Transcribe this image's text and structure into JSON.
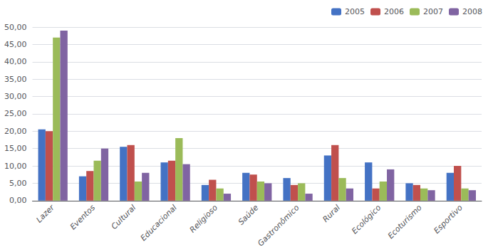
{
  "chart_data": {
    "type": "bar",
    "categories": [
      "Lazer",
      "Eventos",
      "Cultural",
      "Educacional",
      "Religioso",
      "Saúde",
      "Gastronômico",
      "Rural",
      "Ecológico",
      "Ecoturismo",
      "Esportivo"
    ],
    "series": [
      {
        "name": "2005",
        "color": "#4472C4",
        "values": [
          20.5,
          7.0,
          15.5,
          11.0,
          4.5,
          8.0,
          6.5,
          13.0,
          11.0,
          5.0,
          8.0
        ]
      },
      {
        "name": "2006",
        "color": "#C0504D",
        "values": [
          20.0,
          8.5,
          16.0,
          11.5,
          6.0,
          7.5,
          4.5,
          16.0,
          3.5,
          4.5,
          10.0
        ]
      },
      {
        "name": "2007",
        "color": "#9BBB59",
        "values": [
          47.0,
          11.5,
          5.5,
          18.0,
          3.5,
          5.5,
          5.0,
          6.5,
          5.5,
          3.5,
          3.5
        ]
      },
      {
        "name": "2008",
        "color": "#8064A2",
        "values": [
          49.0,
          15.0,
          8.0,
          10.5,
          2.0,
          5.0,
          2.0,
          3.5,
          9.0,
          3.0,
          3.0
        ]
      }
    ],
    "ylim": [
      0,
      50
    ],
    "yticks": [
      {
        "value": 0,
        "label": "0,00"
      },
      {
        "value": 5,
        "label": "5,00"
      },
      {
        "value": 10,
        "label": "10,00"
      },
      {
        "value": 15,
        "label": "15,00"
      },
      {
        "value": 20,
        "label": "20,00"
      },
      {
        "value": 25,
        "label": "25,00"
      },
      {
        "value": 30,
        "label": "30,00"
      },
      {
        "value": 35,
        "label": "35,00"
      },
      {
        "value": 40,
        "label": "40,00"
      },
      {
        "value": 45,
        "label": "45,00"
      },
      {
        "value": 50,
        "label": "50,00"
      }
    ],
    "grid": true,
    "legend": "upper right"
  }
}
